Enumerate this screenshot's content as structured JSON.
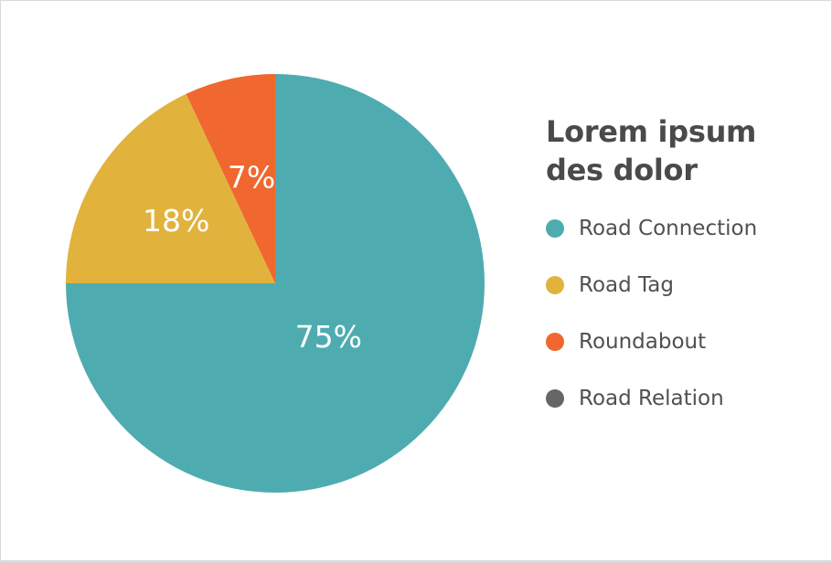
{
  "chart_data": {
    "type": "pie",
    "title": "Lorem ipsum des dolor",
    "title_lines": [
      "Lorem ipsum",
      "des dolor"
    ],
    "legend_position": "right",
    "slices": [
      {
        "label": "Road Connection",
        "value": 75,
        "display": "75%",
        "color": "#4eacb0"
      },
      {
        "label": "Road Tag",
        "value": 18,
        "display": "18%",
        "color": "#e1b33d"
      },
      {
        "label": "Roundabout",
        "value": 7,
        "display": "7%",
        "color": "#f0672f"
      }
    ],
    "legend": [
      {
        "label": "Road Connection",
        "color": "#4eacb0"
      },
      {
        "label": "Road Tag",
        "color": "#e1b33d"
      },
      {
        "label": "Roundabout",
        "color": "#f0672f"
      },
      {
        "label": "Road Relation",
        "color": "#666666"
      }
    ]
  }
}
